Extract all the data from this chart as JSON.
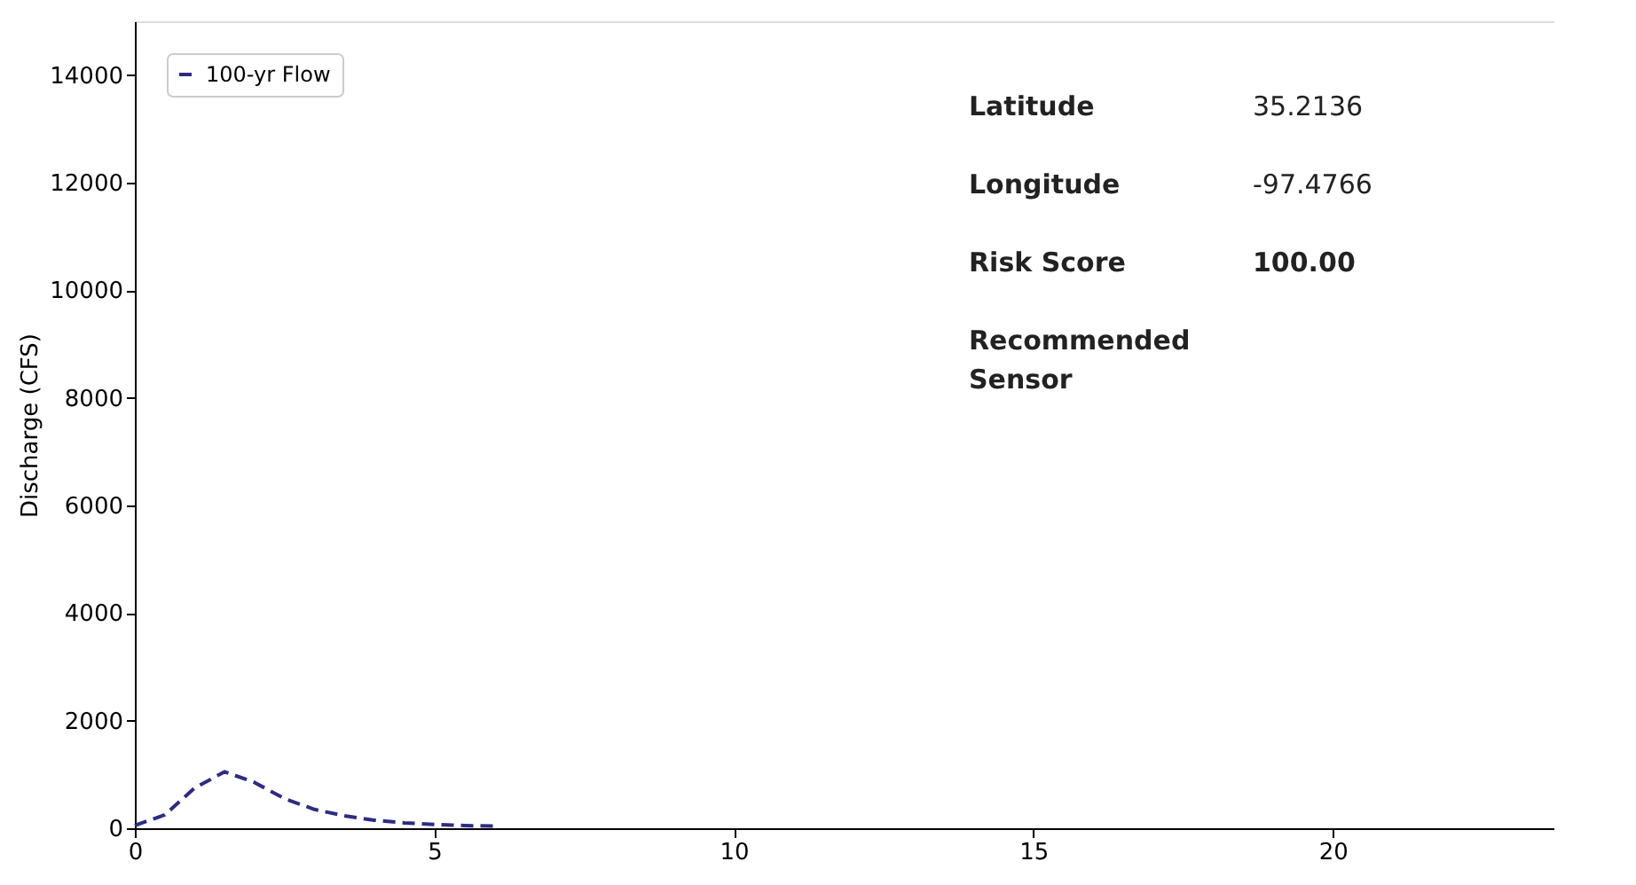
{
  "chart_data": {
    "type": "line",
    "ylabel": "Discharge (CFS)",
    "x": [
      0,
      0.5,
      1,
      1.5,
      2,
      2.5,
      3,
      3.5,
      4,
      4.5,
      5,
      5.5,
      6
    ],
    "series": [
      {
        "name": "100-yr Flow",
        "color": "#2b2b8c",
        "values": [
          50,
          250,
          750,
          1050,
          850,
          550,
          350,
          230,
          150,
          100,
          70,
          50,
          40
        ]
      }
    ],
    "xlim": [
      0,
      23.7
    ],
    "xticks": [
      0,
      5,
      10,
      15,
      20
    ],
    "ylim": [
      0,
      15000
    ],
    "yticks": [
      0,
      2000,
      4000,
      6000,
      8000,
      10000,
      12000,
      14000
    ],
    "line_style": "dashed",
    "marker": "none",
    "grid": false,
    "legend": "top left",
    "annotations": [
      "Latitude",
      "35.2136",
      "Longitude",
      "-97.4766",
      "Risk Score",
      "100.00",
      "Recommended Sensor"
    ]
  }
}
